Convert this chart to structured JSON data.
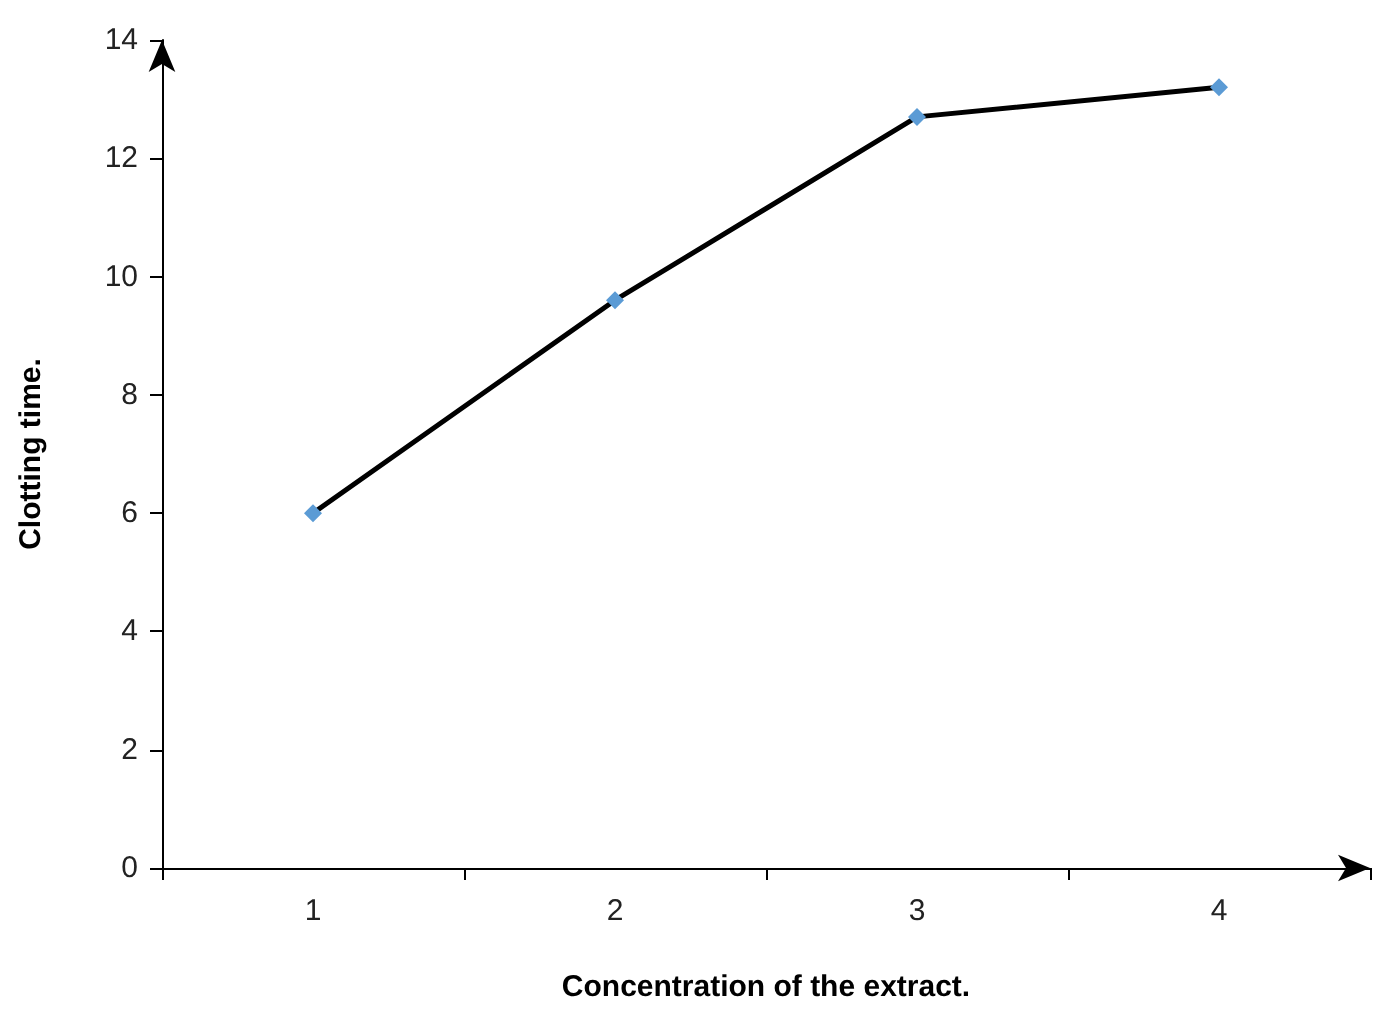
{
  "chart_data": {
    "type": "line",
    "xlabel": "Concentration of the extract.",
    "ylabel": "Clotting time.",
    "categories": [
      "1",
      "2",
      "3",
      "4"
    ],
    "series": [
      {
        "color": "#5b9bd5",
        "values": [
          6.0,
          9.6,
          12.7,
          13.2
        ]
      }
    ],
    "ylim": [
      0,
      14
    ],
    "yticks": [
      0,
      2,
      4,
      6,
      8,
      10,
      12,
      14
    ],
    "grid": false,
    "marker": "diamond",
    "line_style": "solid"
  }
}
